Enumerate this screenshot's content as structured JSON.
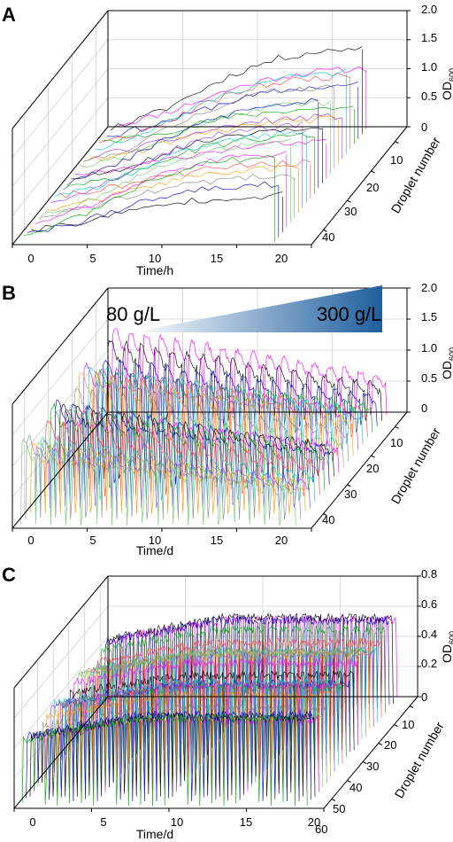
{
  "chart_data": [
    {
      "type": "line",
      "panel": "A",
      "z_axis": {
        "label_main": "OD",
        "label_sub": "600",
        "ticks": [
          "0",
          "0.5",
          "1.0",
          "1.5",
          "2.0"
        ],
        "range": [
          0,
          2.0
        ]
      },
      "x_axis": {
        "label": "Time/h",
        "ticks": [
          "0",
          "5",
          "10",
          "15",
          "20"
        ],
        "range": [
          0,
          20
        ]
      },
      "y_axis": {
        "label": "Droplet number",
        "ticks": [
          "10",
          "20",
          "30",
          "40"
        ],
        "range": [
          1,
          48
        ]
      },
      "series_count": 48,
      "trend": {
        "x": [
          0,
          2,
          4,
          6,
          8,
          10,
          12,
          14,
          16,
          18
        ],
        "od600": [
          0.1,
          0.25,
          0.45,
          0.7,
          0.95,
          1.15,
          1.3,
          1.4,
          1.45,
          1.5
        ]
      },
      "grid": true
    },
    {
      "type": "line",
      "panel": "B",
      "z_axis": {
        "label_main": "OD",
        "label_sub": "600",
        "ticks": [
          "0",
          "0.5",
          "1.0",
          "1.5",
          "2.0"
        ],
        "range": [
          0,
          2.0
        ]
      },
      "x_axis": {
        "label": "Time/d",
        "ticks": [
          "0",
          "5",
          "10",
          "15",
          "20"
        ],
        "range": [
          0,
          20
        ]
      },
      "y_axis": {
        "label": "Droplet number",
        "ticks": [
          "10",
          "20",
          "30",
          "40"
        ],
        "range": [
          1,
          48
        ]
      },
      "series_count": 48,
      "gradient_labels": [
        "80 g/L",
        "300 g/L"
      ],
      "grid": true
    },
    {
      "type": "line",
      "panel": "C",
      "z_axis": {
        "label_main": "OD",
        "label_sub": "600",
        "ticks": [
          "0",
          "0.2",
          "0.4",
          "0.6",
          "0.8"
        ],
        "range": [
          0,
          0.8
        ]
      },
      "x_axis": {
        "label": "Time/d",
        "ticks": [
          "0",
          "5",
          "10",
          "15",
          "20"
        ],
        "range": [
          0,
          20
        ]
      },
      "y_axis": {
        "label": "Droplet number",
        "ticks": [
          "10",
          "20",
          "30",
          "40",
          "50",
          "60"
        ],
        "range": [
          1,
          64
        ]
      },
      "series_count": 64,
      "grid": true
    }
  ],
  "panels": {
    "A": {
      "letter": "A"
    },
    "B": {
      "letter": "B"
    },
    "C": {
      "letter": "C"
    }
  },
  "colors": {
    "series": [
      "#ff00ff",
      "#000000",
      "#0000cc",
      "#00aa00",
      "#ff4444",
      "#00cccc",
      "#9933ff",
      "#ff9900",
      "#888888",
      "#66cc66"
    ],
    "gradient_start": "#ffffff",
    "gradient_end": "#1f5f9e"
  }
}
